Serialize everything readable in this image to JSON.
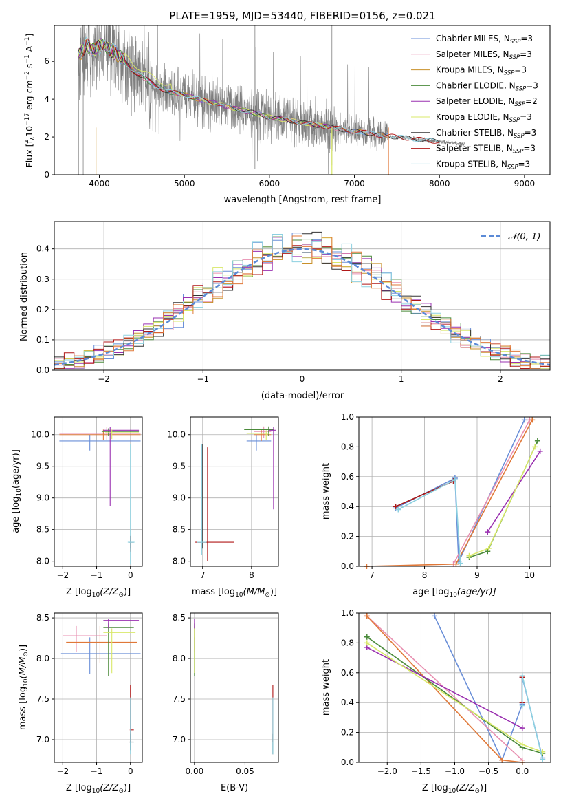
{
  "chart_data": [
    {
      "id": "spectrum",
      "type": "line",
      "title": "PLATE=1959, MJD=53440, FIBERID=0156, z=0.021",
      "xlabel": "wavelength [Angstrom, rest frame]",
      "ylabel": "Flux [f",
      "ylabel_sub": "λ",
      "ylabel_rest": "10",
      "ylabel_exp": "−17",
      "ylabel_units": " erg cm",
      "ylabel_exp2": "−2",
      "ylabel_units2": " s",
      "ylabel_exp3": "−1",
      "ylabel_units3": " A",
      "ylabel_exp4": "−1",
      "ylabel_end": "]",
      "xlim": [
        3470,
        9300
      ],
      "ylim": [
        0,
        7.9
      ],
      "xticks": [
        4000,
        5000,
        6000,
        7000,
        8000,
        9000
      ],
      "xticklabels": [
        "4000",
        "5000",
        "6000",
        "7000",
        "8000",
        "9000"
      ],
      "yticks": [
        0,
        2,
        4,
        6
      ],
      "yticklabels": [
        "0",
        "2",
        "4",
        "6"
      ],
      "legend_position": "top-right",
      "legend": [
        {
          "name": "Chabrier MILES, N",
          "sub": "SSP",
          "suffix": "=3",
          "color": "#6a8fd8"
        },
        {
          "name": "Salpeter MILES, N",
          "sub": "SSP",
          "suffix": "=3",
          "color": "#e88fb0"
        },
        {
          "name": "Kroupa MILES, N",
          "sub": "SSP",
          "suffix": "=3",
          "color": "#c8902a"
        },
        {
          "name": "Chabrier ELODIE, N",
          "sub": "SSP",
          "suffix": "=3",
          "color": "#4a8a3a"
        },
        {
          "name": "Salpeter ELODIE, N",
          "sub": "SSP",
          "suffix": "=2",
          "color": "#9a30b0"
        },
        {
          "name": "Kroupa ELODIE, N",
          "sub": "SSP",
          "suffix": "=3",
          "color": "#d8e868"
        },
        {
          "name": "Chabrier STELIB, N",
          "sub": "SSP",
          "suffix": "=3",
          "color": "#333333"
        },
        {
          "name": "Salpeter STELIB, N",
          "sub": "SSP",
          "suffix": "=3",
          "color": "#b01818"
        },
        {
          "name": "Kroupa STELIB, N",
          "sub": "SSP",
          "suffix": "=3",
          "color": "#8cd0e0"
        }
      ],
      "data_color": "#7f7f7f",
      "continuum": {
        "x": [
          3750,
          3850,
          3950,
          4050,
          4150,
          4250,
          4400,
          4600,
          4800,
          5000,
          5200,
          5400,
          5600,
          5800,
          6000,
          6200,
          6400,
          6600,
          6750,
          6900,
          7100,
          7300,
          7500,
          7700,
          7900,
          8100,
          8300
        ],
        "y": [
          6.3,
          6.9,
          6.6,
          6.9,
          6.6,
          6.2,
          5.5,
          4.9,
          4.4,
          4.25,
          3.95,
          3.75,
          3.5,
          3.3,
          3.05,
          2.9,
          2.75,
          2.6,
          2.5,
          2.35,
          2.25,
          2.1,
          2.0,
          1.9,
          1.8,
          1.7,
          1.6
        ]
      },
      "model_end_x": [
        7400,
        7400,
        7400,
        6730,
        6730,
        6730,
        8000,
        8000,
        8000
      ]
    },
    {
      "id": "residuals",
      "type": "line",
      "xlabel": "(data-model)/error",
      "ylabel": "Normed distribution",
      "xlim": [
        -2.5,
        2.5
      ],
      "ylim": [
        0,
        0.49
      ],
      "xticks": [
        -2,
        -1,
        0,
        1,
        2
      ],
      "xticklabels": [
        "−2",
        "−1",
        "0",
        "1",
        "2"
      ],
      "yticks": [
        0,
        0.1,
        0.2,
        0.3,
        0.4
      ],
      "yticklabels": [
        "0.0",
        "0.1",
        "0.2",
        "0.3",
        "0.4"
      ],
      "grid": true,
      "legend_position": "top-right",
      "gauss_label": "𝒩(0, 1)",
      "gauss_color": "#5b8ad6"
    },
    {
      "id": "age-vs-z",
      "type": "scatter",
      "xlabel": "Z [log",
      "xlabel_sub": "10",
      "xlabel_rest": "(Z/Z",
      "xlabel_sub2": "⊙",
      "xlabel_end": ")]",
      "ylabel": "age  [log",
      "ylabel_sub": "10",
      "ylabel_rest": "(age/yr)]",
      "xlim": [
        -2.25,
        0.35
      ],
      "ylim": [
        7.92,
        10.28
      ],
      "xticks": [
        -2,
        -1,
        0
      ],
      "xticklabels": [
        "−2",
        "−1",
        "0"
      ],
      "yticks": [
        8.0,
        8.5,
        9.0,
        9.5,
        10.0
      ],
      "yticklabels": [
        "8.0",
        "8.5",
        "9.0",
        "9.5",
        "10.0"
      ],
      "grid": true
    },
    {
      "id": "age-vs-mass",
      "type": "scatter",
      "xlabel": "mass [log",
      "xlabel_sub": "10",
      "xlabel_rest": "(M/M",
      "xlabel_sub2": "⊙",
      "xlabel_end": ")]",
      "xlim": [
        6.75,
        8.55
      ],
      "ylim": [
        7.92,
        10.28
      ],
      "xticks": [
        7,
        8
      ],
      "xticklabels": [
        "7",
        "8"
      ],
      "yticks": [
        8.0,
        8.5,
        9.0,
        9.5,
        10.0
      ],
      "yticklabels": [
        "8.0",
        "8.5",
        "9.0",
        "9.5",
        "10.0"
      ],
      "grid": true
    },
    {
      "id": "massweight-vs-age",
      "type": "line",
      "xlabel": "age  [log",
      "xlabel_sub": "10",
      "xlabel_rest": "(age/yr)]",
      "ylabel": "mass weight",
      "xlim": [
        6.75,
        10.4
      ],
      "ylim": [
        0,
        1
      ],
      "xticks": [
        7,
        8,
        9,
        10
      ],
      "xticklabels": [
        "7",
        "8",
        "9",
        "10"
      ],
      "yticks": [
        0,
        0.2,
        0.4,
        0.6,
        0.8,
        1.0
      ],
      "yticklabels": [
        "0.0",
        "0.2",
        "0.4",
        "0.6",
        "0.8",
        "1.0"
      ],
      "grid": true,
      "series": [
        {
          "color": "#6a8fd8",
          "x": [
            7.45,
            8.58,
            8.65,
            9.9
          ],
          "y": [
            0.39,
            0.59,
            0.03,
            0.98
          ]
        },
        {
          "color": "#e88fb0",
          "x": [
            8.55,
            10.0
          ],
          "y": [
            0.015,
            0.98
          ]
        },
        {
          "color": "#e07838",
          "x": [
            6.9,
            8.6,
            10.05
          ],
          "y": [
            0.0,
            0.015,
            0.98
          ]
        },
        {
          "color": "#4a8a3a",
          "x": [
            8.85,
            9.2,
            10.15
          ],
          "y": [
            0.06,
            0.1,
            0.84
          ]
        },
        {
          "color": "#9a30b0",
          "x": [
            9.2,
            10.2
          ],
          "y": [
            0.23,
            0.77
          ]
        },
        {
          "color": "#d8e868",
          "x": [
            8.85,
            9.22,
            10.1
          ],
          "y": [
            0.07,
            0.12,
            0.8
          ]
        },
        {
          "color": "#333333",
          "x": [
            7.45,
            8.55
          ],
          "y": [
            0.4,
            0.57
          ]
        },
        {
          "color": "#b01818",
          "x": [
            7.45,
            8.55
          ],
          "y": [
            0.4,
            0.57
          ]
        },
        {
          "color": "#8cd0e0",
          "x": [
            7.5,
            8.58,
            8.68
          ],
          "y": [
            0.38,
            0.58,
            0.02
          ]
        }
      ]
    },
    {
      "id": "mass-vs-z",
      "type": "scatter",
      "xlabel": "Z [log",
      "xlabel_sub": "10",
      "xlabel_rest": "(Z/Z",
      "xlabel_sub2": "⊙",
      "xlabel_end": ")]",
      "ylabel": "mass [log",
      "ylabel_sub": "10",
      "ylabel_rest": "(M/M",
      "ylabel_sub2": "⊙",
      "ylabel_end": ")]",
      "xlim": [
        -2.25,
        0.35
      ],
      "ylim": [
        6.72,
        8.56
      ],
      "xticks": [
        -2,
        -1,
        0
      ],
      "xticklabels": [
        "−2",
        "−1",
        "0"
      ],
      "yticks": [
        7.0,
        7.5,
        8.0,
        8.5
      ],
      "yticklabels": [
        "7.0",
        "7.5",
        "8.0",
        "8.5"
      ],
      "grid": true
    },
    {
      "id": "mass-vs-ebv",
      "type": "scatter",
      "xlabel": "E(B-V)",
      "xlim": [
        -0.004,
        0.083
      ],
      "ylim": [
        6.72,
        8.56
      ],
      "xticks": [
        0,
        0.05
      ],
      "xticklabels": [
        "0.00",
        "0.05"
      ],
      "yticks": [
        7.0,
        7.5,
        8.0,
        8.5
      ],
      "yticklabels": [
        "7.0",
        "7.5",
        "8.0",
        "8.5"
      ],
      "grid": true
    },
    {
      "id": "massweight-vs-z",
      "type": "line",
      "xlabel": "Z [log",
      "xlabel_sub": "10",
      "xlabel_rest": "(Z/Z",
      "xlabel_sub2": "⊙",
      "xlabel_end": ")]",
      "ylabel": "mass weight",
      "xlim": [
        -2.42,
        0.42
      ],
      "ylim": [
        0,
        1
      ],
      "xticks": [
        -2,
        -1.5,
        -1,
        -0.5,
        0
      ],
      "xticklabels": [
        "−2.0",
        "−1.5",
        "−1.0",
        "−0.5",
        "0.0"
      ],
      "yticks": [
        0,
        0.2,
        0.4,
        0.6,
        0.8,
        1.0
      ],
      "yticklabels": [
        "0.0",
        "0.2",
        "0.4",
        "0.6",
        "0.8",
        "1.0"
      ],
      "grid": true,
      "series": [
        {
          "color": "#6a8fd8",
          "x": [
            -1.3,
            -0.3,
            0.0,
            0.0,
            0.3
          ],
          "y": [
            0.98,
            0.015,
            0.39,
            0.57,
            0.03
          ]
        },
        {
          "color": "#e88fb0",
          "x": [
            -2.3,
            0.0
          ],
          "y": [
            0.98,
            0.015
          ]
        },
        {
          "color": "#e07838",
          "x": [
            -2.3,
            -0.3,
            0.0
          ],
          "y": [
            0.98,
            0.015,
            0.0
          ]
        },
        {
          "color": "#4a8a3a",
          "x": [
            -2.3,
            0.0,
            0.3
          ],
          "y": [
            0.84,
            0.1,
            0.06
          ]
        },
        {
          "color": "#9a30b0",
          "x": [
            -2.3,
            0.0
          ],
          "y": [
            0.77,
            0.23
          ]
        },
        {
          "color": "#d8e868",
          "x": [
            -2.3,
            0.0,
            0.3
          ],
          "y": [
            0.8,
            0.12,
            0.07
          ]
        },
        {
          "color": "#333333",
          "x": [
            0.0,
            0.0
          ],
          "y": [
            0.4,
            0.57
          ]
        },
        {
          "color": "#b01818",
          "x": [
            0.0,
            0.0
          ],
          "y": [
            0.4,
            0.57
          ]
        },
        {
          "color": "#8cd0e0",
          "x": [
            0.0,
            0.0,
            0.3
          ],
          "y": [
            0.38,
            0.58,
            0.02
          ]
        }
      ]
    }
  ]
}
